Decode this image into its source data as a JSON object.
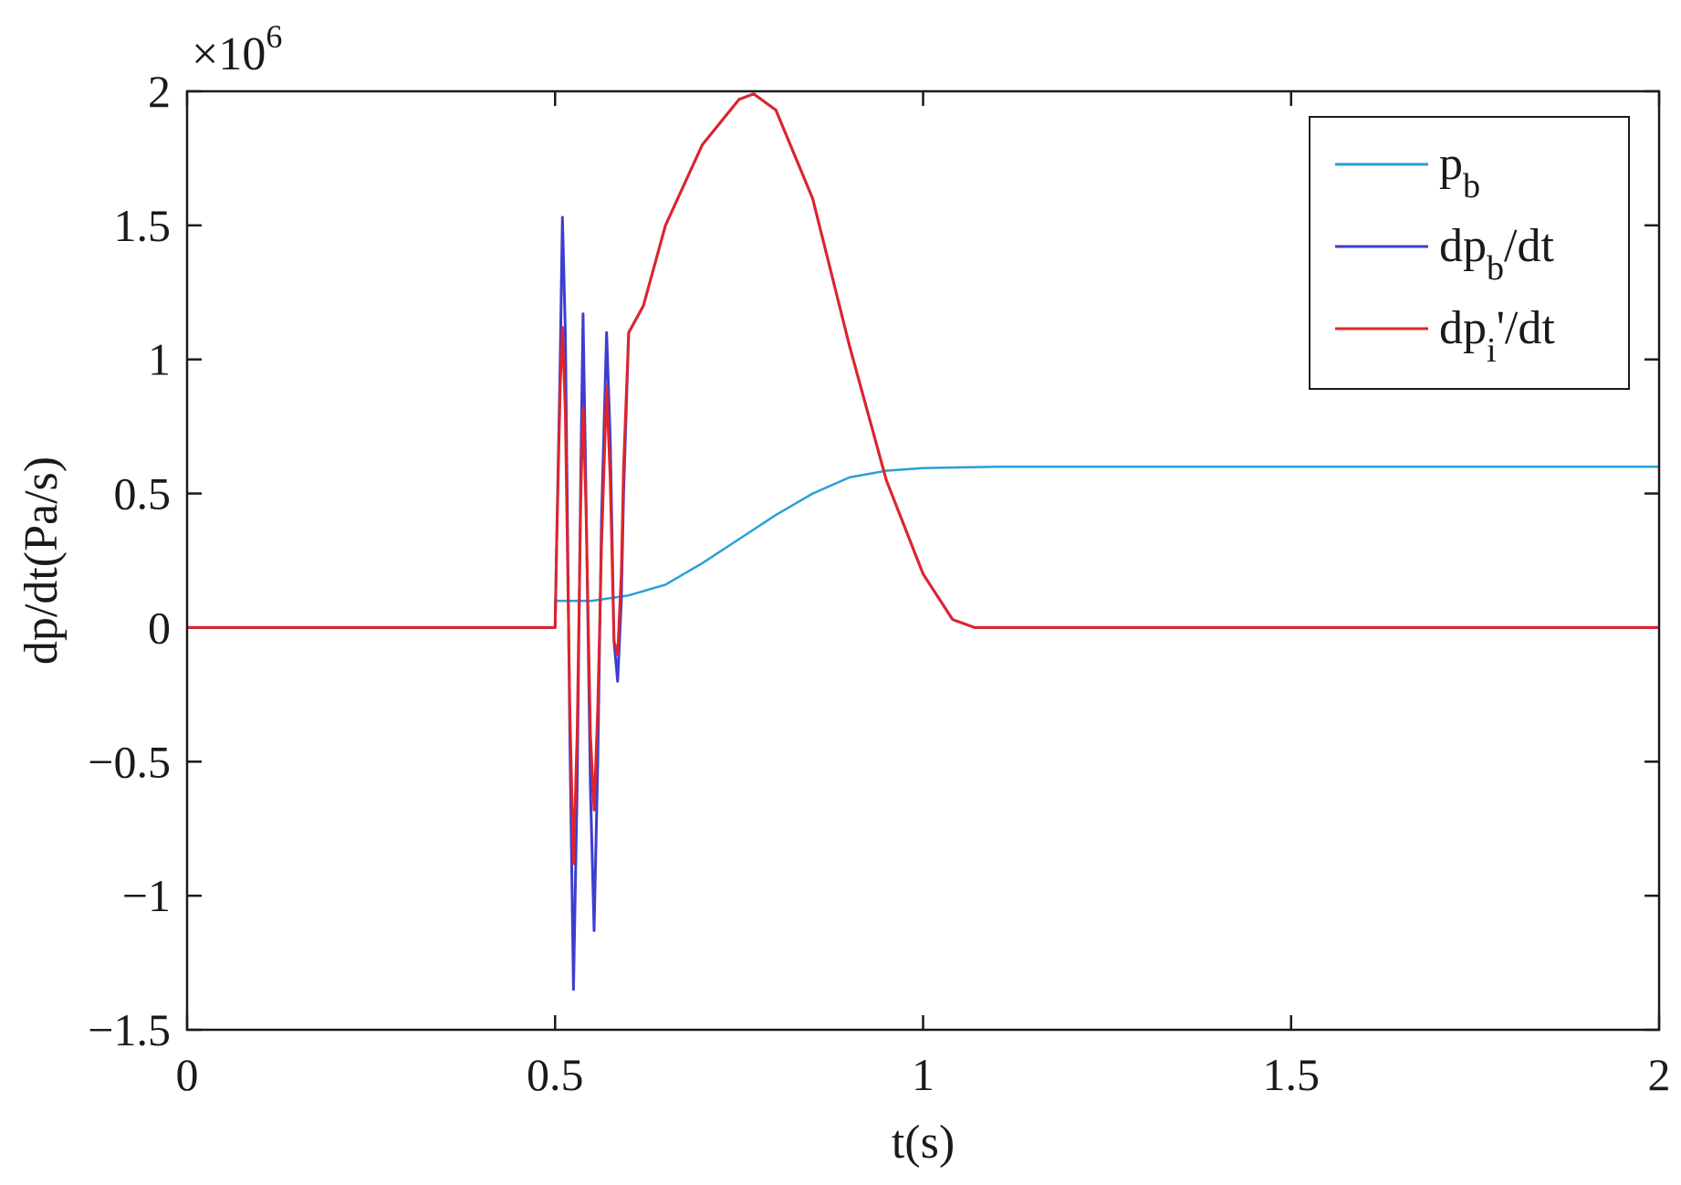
{
  "chart_data": {
    "type": "line",
    "xlabel": "t(s)",
    "ylabel": "dp/dt(Pa/s)",
    "y_exponent_label": {
      "base": "×10",
      "exp": "6"
    },
    "xlim": [
      0,
      2
    ],
    "ylim": [
      -1.5,
      2
    ],
    "y_scale_factor": 1000000,
    "x_ticks": [
      0,
      0.5,
      1,
      1.5,
      2
    ],
    "x_tick_labels": [
      "0",
      "0.5",
      "1",
      "1.5",
      "2"
    ],
    "y_ticks": [
      -1.5,
      -1,
      -0.5,
      0,
      0.5,
      1,
      1.5,
      2
    ],
    "y_tick_labels": [
      "−1.5",
      "−1",
      "−0.5",
      "0",
      "0.5",
      "1",
      "1.5",
      "2"
    ],
    "grid": false,
    "legend_position": "top-right",
    "legend": [
      {
        "main": "p",
        "sub": "b",
        "suffix": "",
        "color": "#2a9fd6"
      },
      {
        "main": "dp",
        "sub": "b",
        "suffix": "/dt",
        "color": "#3d3dd0"
      },
      {
        "main": "dp",
        "sub": "i",
        "suffix": "'/dt",
        "color": "#e0242a"
      }
    ],
    "series": [
      {
        "name": "p_b",
        "color": "#2a9fd6",
        "points": [
          [
            0,
            0
          ],
          [
            0.5,
            0
          ],
          [
            0.5,
            0.1
          ],
          [
            0.55,
            0.1
          ],
          [
            0.6,
            0.12
          ],
          [
            0.65,
            0.16
          ],
          [
            0.7,
            0.24
          ],
          [
            0.75,
            0.33
          ],
          [
            0.8,
            0.42
          ],
          [
            0.85,
            0.5
          ],
          [
            0.9,
            0.56
          ],
          [
            0.95,
            0.585
          ],
          [
            1.0,
            0.595
          ],
          [
            1.1,
            0.6
          ],
          [
            2.0,
            0.6
          ]
        ]
      },
      {
        "name": "dp_b/dt",
        "color": "#3d3dd0",
        "points": [
          [
            0,
            0
          ],
          [
            0.5,
            0
          ],
          [
            0.502,
            0.3
          ],
          [
            0.507,
            1.0
          ],
          [
            0.51,
            1.53
          ],
          [
            0.514,
            1.1
          ],
          [
            0.52,
            -0.4
          ],
          [
            0.525,
            -1.35
          ],
          [
            0.53,
            -0.6
          ],
          [
            0.535,
            0.6
          ],
          [
            0.538,
            1.17
          ],
          [
            0.542,
            0.5
          ],
          [
            0.548,
            -0.6
          ],
          [
            0.553,
            -1.13
          ],
          [
            0.558,
            -0.5
          ],
          [
            0.563,
            0.4
          ],
          [
            0.57,
            1.1
          ],
          [
            0.575,
            0.7
          ],
          [
            0.58,
            -0.05
          ],
          [
            0.585,
            -0.2
          ],
          [
            0.59,
            0.1
          ],
          [
            0.593,
            0.5
          ],
          [
            0.6,
            1.1
          ],
          [
            0.62,
            1.2
          ],
          [
            0.65,
            1.5
          ],
          [
            0.7,
            1.8
          ],
          [
            0.75,
            1.97
          ],
          [
            0.77,
            1.99
          ],
          [
            0.8,
            1.93
          ],
          [
            0.85,
            1.6
          ],
          [
            0.9,
            1.05
          ],
          [
            0.95,
            0.55
          ],
          [
            1.0,
            0.2
          ],
          [
            1.04,
            0.03
          ],
          [
            1.07,
            0
          ],
          [
            1.5,
            0
          ],
          [
            2.0,
            0
          ]
        ]
      },
      {
        "name": "dp_i'/dt",
        "color": "#e0242a",
        "points": [
          [
            0,
            0
          ],
          [
            0.5,
            0
          ],
          [
            0.502,
            0.3
          ],
          [
            0.507,
            0.9
          ],
          [
            0.51,
            1.12
          ],
          [
            0.514,
            0.8
          ],
          [
            0.52,
            -0.3
          ],
          [
            0.525,
            -0.88
          ],
          [
            0.53,
            -0.4
          ],
          [
            0.535,
            0.5
          ],
          [
            0.538,
            0.82
          ],
          [
            0.542,
            0.45
          ],
          [
            0.548,
            -0.4
          ],
          [
            0.553,
            -0.68
          ],
          [
            0.558,
            -0.3
          ],
          [
            0.563,
            0.3
          ],
          [
            0.57,
            0.9
          ],
          [
            0.575,
            0.55
          ],
          [
            0.58,
            -0.05
          ],
          [
            0.585,
            -0.1
          ],
          [
            0.59,
            0.2
          ],
          [
            0.593,
            0.6
          ],
          [
            0.6,
            1.1
          ],
          [
            0.62,
            1.2
          ],
          [
            0.65,
            1.5
          ],
          [
            0.7,
            1.8
          ],
          [
            0.75,
            1.97
          ],
          [
            0.77,
            1.99
          ],
          [
            0.8,
            1.93
          ],
          [
            0.85,
            1.6
          ],
          [
            0.9,
            1.05
          ],
          [
            0.95,
            0.55
          ],
          [
            1.0,
            0.2
          ],
          [
            1.04,
            0.03
          ],
          [
            1.07,
            0
          ],
          [
            1.5,
            0
          ],
          [
            2.0,
            0
          ]
        ]
      }
    ]
  }
}
